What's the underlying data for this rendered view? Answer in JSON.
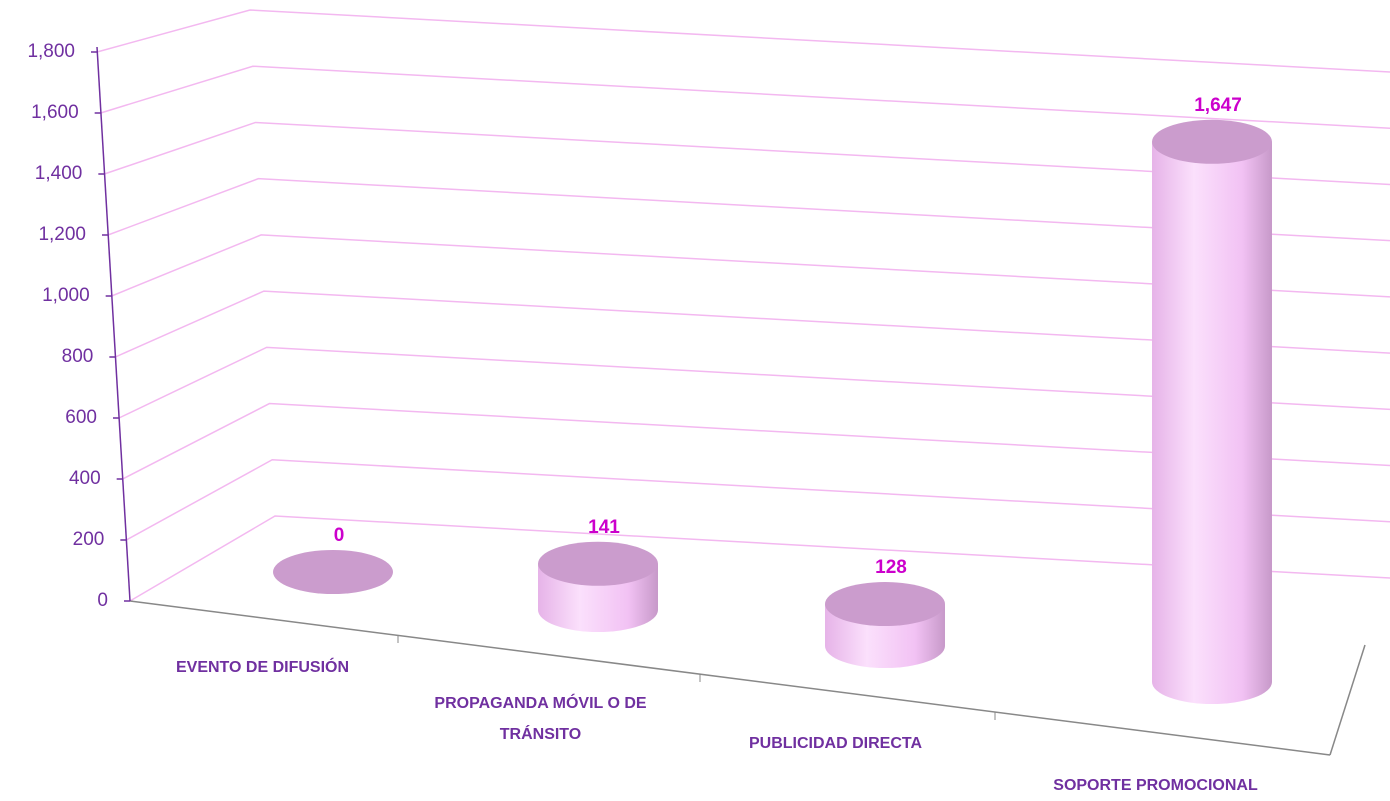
{
  "chart_data": {
    "type": "bar3d",
    "categories": [
      "EVENTO DE DIFUSIÓN",
      "PROPAGANDA MÓVIL O DE TRÁNSITO",
      "PUBLICIDAD DIRECTA",
      "SOPORTE PROMOCIONAL"
    ],
    "values": [
      0,
      141,
      128,
      1647
    ],
    "value_labels": [
      "0",
      "141",
      "128",
      "1,647"
    ],
    "color": "#f5c8f7",
    "ylim": [
      0,
      1800
    ],
    "yticks": [
      0,
      200,
      400,
      600,
      800,
      {
        "value": 1000,
        "label": "1,000"
      },
      {
        "value": 1200,
        "label": "1,200"
      },
      {
        "value": 1400,
        "label": "1,400"
      },
      {
        "value": 1600,
        "label": "1,600"
      },
      {
        "value": 1800,
        "label": "1,800"
      }
    ],
    "grid": true
  }
}
